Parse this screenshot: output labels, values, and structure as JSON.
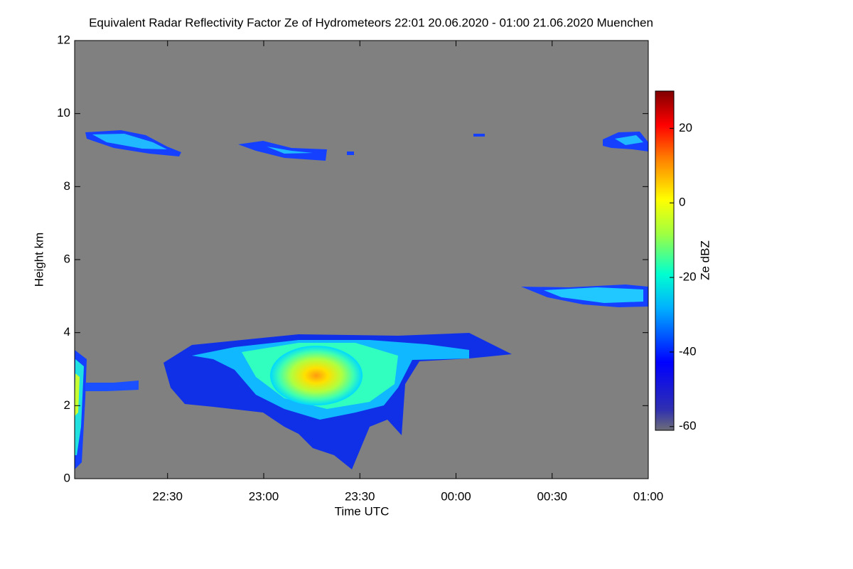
{
  "chart_data": {
    "type": "heatmap",
    "title": "Equivalent Radar Reflectivity Factor Ze of Hydrometeors   22:01 20.06.2020 - 01:00 21.06.2020 Muenchen",
    "xlabel": "Time UTC",
    "ylabel": "Height km",
    "colorbar_label": "Ze dBZ",
    "xlim": [
      1321,
      1500
    ],
    "xticks": [
      {
        "value": 1350,
        "label": "22:30"
      },
      {
        "value": 1380,
        "label": "23:00"
      },
      {
        "value": 1410,
        "label": "23:30"
      },
      {
        "value": 1440,
        "label": "00:00"
      },
      {
        "value": 1470,
        "label": "00:30"
      },
      {
        "value": 1500,
        "label": "01:00"
      }
    ],
    "ylim": [
      0,
      12
    ],
    "yticks": [
      0,
      2,
      4,
      6,
      8,
      10,
      12
    ],
    "clim": [
      -61,
      30
    ],
    "cticks": [
      -60,
      -40,
      -20,
      0,
      20
    ],
    "background": "#808080"
  }
}
